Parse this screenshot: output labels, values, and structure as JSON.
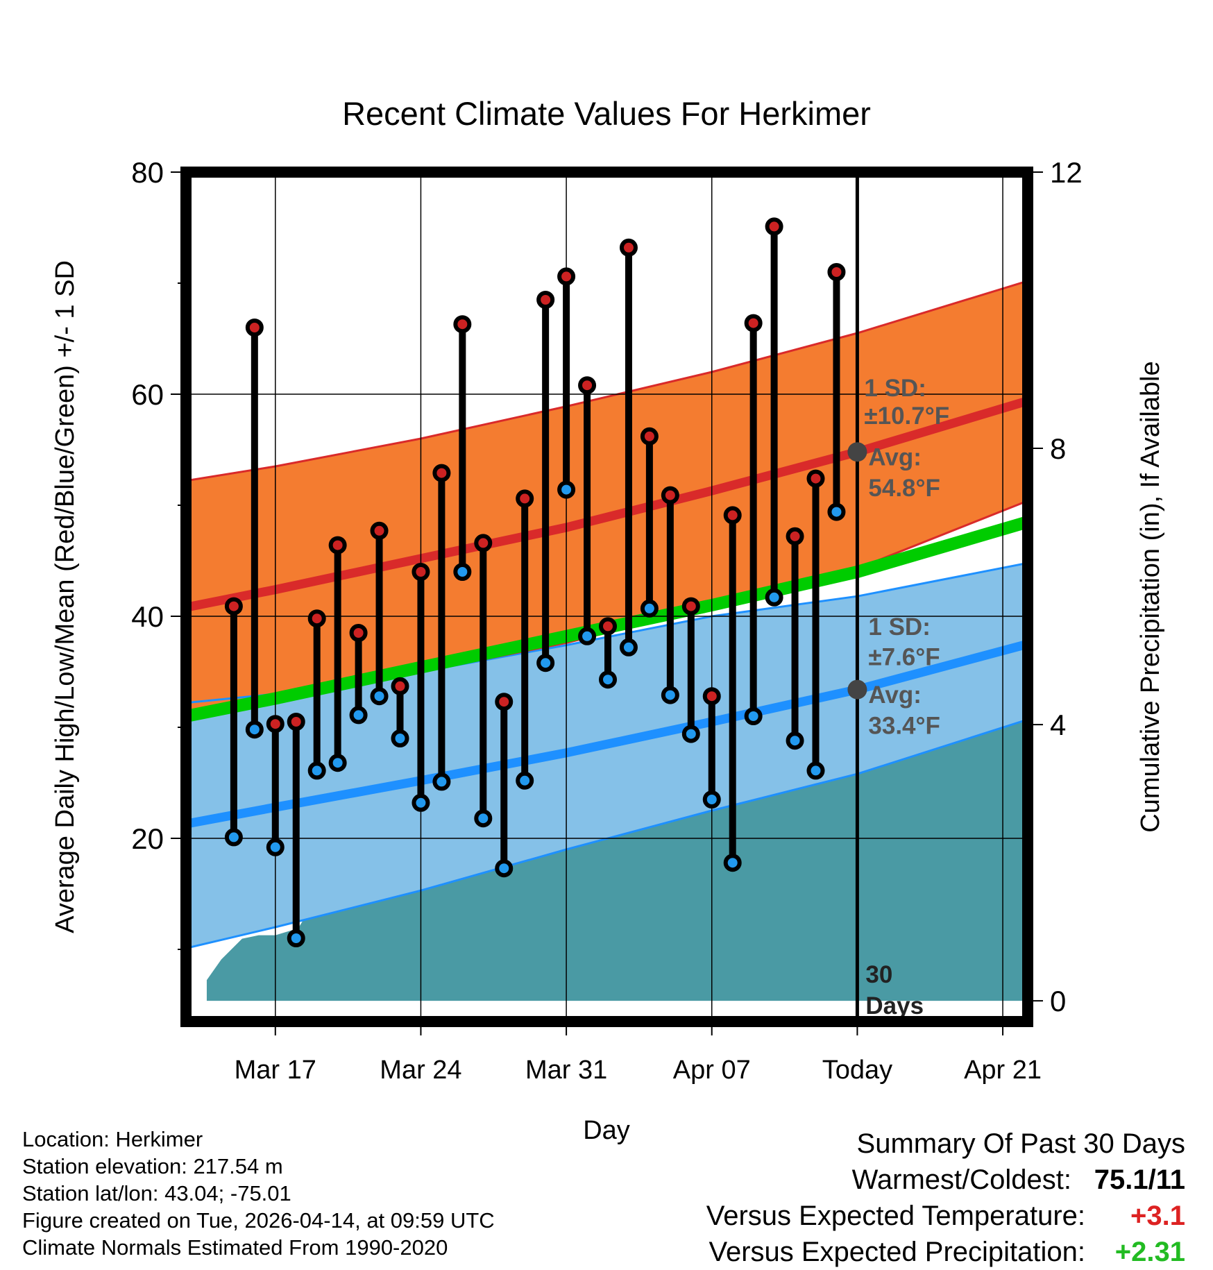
{
  "title": "Recent Climate Values For Herkimer",
  "chart_data": {
    "type": "scatter",
    "title": "Recent Climate Values For Herkimer",
    "xlabel": "Day",
    "ylabel": "Average Daily High/Low/Mean (Red/Blue/Green) +/- 1 SD",
    "y2label": "Cumulative Precipitation (in), If Available",
    "ylim": [
      3.5,
      80
    ],
    "y2lim": [
      0,
      12
    ],
    "y2_display_range": [
      -0.3,
      12
    ],
    "yticks": [
      "80",
      "60",
      "40",
      "20"
    ],
    "y2ticks": [
      "12",
      "8",
      "4",
      "0"
    ],
    "y2tick_values": [
      12,
      8,
      4,
      0
    ],
    "xlim": [
      -4.3,
      36.2
    ],
    "xticks": [
      {
        "day": 0,
        "label": "Mar 17"
      },
      {
        "day": 7,
        "label": "Mar 24"
      },
      {
        "day": 14,
        "label": "Mar 31"
      },
      {
        "day": 21,
        "label": "Apr 07"
      },
      {
        "day": 28,
        "label": "Today"
      },
      {
        "day": 35,
        "label": "Apr 21"
      }
    ],
    "days": [
      -2,
      -1,
      0,
      1,
      2,
      3,
      4,
      5,
      6,
      7,
      8,
      9,
      10,
      11,
      12,
      13,
      14,
      15,
      16,
      17,
      18,
      19,
      20,
      21,
      22,
      23,
      24,
      25,
      26,
      27
    ],
    "highs": [
      40.9,
      66.0,
      30.3,
      30.5,
      39.8,
      46.4,
      38.5,
      47.7,
      33.7,
      44.0,
      52.9,
      66.3,
      46.6,
      32.3,
      50.6,
      68.5,
      70.6,
      60.8,
      39.1,
      73.2,
      56.2,
      50.9,
      40.9,
      32.8,
      49.1,
      66.4,
      75.1,
      47.2,
      52.4,
      71.0
    ],
    "lows": [
      20.1,
      29.8,
      19.2,
      11.0,
      26.1,
      26.8,
      31.1,
      32.8,
      29.0,
      23.2,
      25.1,
      44.0,
      21.8,
      17.3,
      25.2,
      35.8,
      51.4,
      38.2,
      34.3,
      37.2,
      40.7,
      32.9,
      29.4,
      23.5,
      17.8,
      31.0,
      41.7,
      28.8,
      26.1,
      49.4
    ],
    "normals": {
      "x": [
        -4.3,
        0,
        7,
        14,
        21,
        28,
        36.2
      ],
      "high_mean": [
        40.8,
        42.4,
        45.2,
        48.0,
        51.3,
        54.8,
        59.4
      ],
      "high_upper": [
        52.2,
        53.5,
        56.0,
        58.9,
        62.0,
        65.5,
        70.2
      ],
      "high_lower": [
        31.5,
        32.6,
        35.0,
        37.6,
        40.9,
        44.3,
        50.4
      ],
      "low_mean": [
        21.3,
        22.8,
        25.2,
        27.7,
        30.5,
        33.4,
        37.5
      ],
      "low_upper": [
        32.2,
        33.0,
        35.0,
        37.4,
        40.0,
        41.8,
        44.8
      ],
      "low_lower": [
        10.1,
        12.0,
        15.3,
        19.0,
        22.5,
        25.8,
        30.7
      ],
      "mean_mean": [
        31.0,
        32.6,
        35.4,
        38.2,
        41.0,
        44.0,
        48.5
      ]
    },
    "precip": {
      "x": [
        -3.3,
        -2.6,
        -1.6,
        -0.8,
        0,
        1.1,
        1.8,
        2.6,
        3.2,
        4.2,
        5.1,
        7,
        8.1,
        8.9,
        10,
        12,
        13.9,
        14.8,
        15.6,
        16.2,
        17,
        17.7,
        18.9,
        19.6,
        20.4,
        21.3,
        22.4,
        23.1,
        23.9,
        24.7,
        25.6,
        26.4,
        27.2,
        28.1,
        28.9,
        36.2
      ],
      "y": [
        0.3,
        0.6,
        0.9,
        0.95,
        0.95,
        1.05,
        1.4,
        1.45,
        1.4,
        1.8,
        2.4,
        2.4,
        2.6,
        3.5,
        3.55,
        3.55,
        3.55,
        4.3,
        4.3,
        4.55,
        4.6,
        4.6,
        4.6,
        5.2,
        5.3,
        5.35,
        5.35,
        5.35,
        5.35,
        5.45,
        5.5,
        5.5,
        5.5,
        5.5,
        5.5,
        5.5
      ]
    },
    "annotations": {
      "high_sd": "1 SD:",
      "high_sd_val": "±10.7°F",
      "high_avg": "Avg:",
      "high_avg_val": "54.8°F",
      "low_sd": "1 SD:",
      "low_sd_val": "±7.6°F",
      "low_avg": "Avg:",
      "low_avg_val": "33.4°F",
      "days_num": "30",
      "days_label": "Days"
    },
    "today_markers": {
      "high_avg": 54.8,
      "low_avg": 33.4
    },
    "colors": {
      "high_band": "#f47c30",
      "high_line": "#d92a2a",
      "low_band": "#85c1e8",
      "low_line": "#1e90ff",
      "mean_line": "#00cc00",
      "precip": "#4a9aa4",
      "high_dot": "#cc2222",
      "low_dot": "#2299ee",
      "annotation": "#555555"
    }
  },
  "info": {
    "location": "Location: Herkimer",
    "elevation": "Station elevation: 217.54 m",
    "latlon": "Station lat/lon: 43.04; -75.01",
    "created": "Figure created on Tue, 2026-04-14, at 09:59 UTC",
    "normals": "Climate Normals Estimated From 1990-2020"
  },
  "summary": {
    "title": "Summary Of Past 30 Days",
    "warm_label": "Warmest/Coldest:",
    "warm_value": "75.1/11",
    "temp_label": "Versus Expected Temperature:",
    "temp_value": "+3.1",
    "temp_color": "#dd2222",
    "precip_label": "Versus Expected Precipitation:",
    "precip_value": "+2.31",
    "precip_color": "#22bb22"
  }
}
